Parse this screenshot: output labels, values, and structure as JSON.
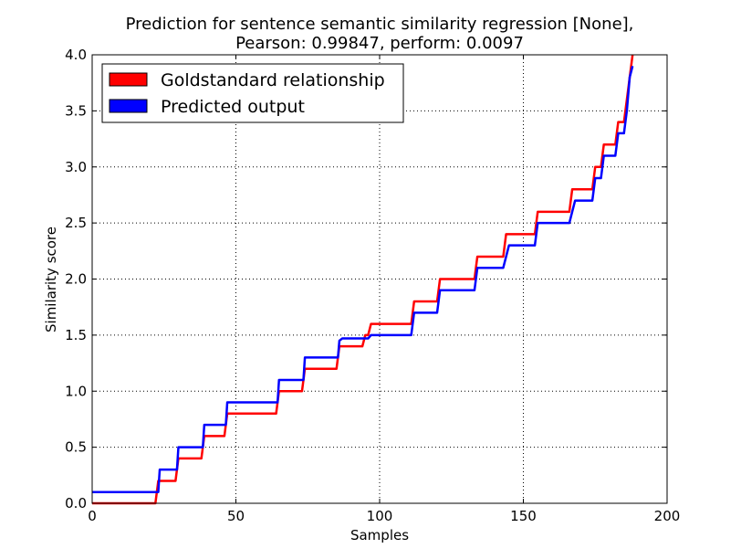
{
  "chart_data": {
    "type": "line",
    "title_lines": [
      "Prediction for sentence semantic similarity regression [None],",
      "Pearson: 0.99847, perform: 0.0097"
    ],
    "xlabel": "Samples",
    "ylabel": "Similarity score",
    "xlim": [
      0,
      200
    ],
    "ylim": [
      0.0,
      4.0
    ],
    "xticks": [
      0,
      50,
      100,
      150,
      200
    ],
    "xtick_labels": [
      "0",
      "50",
      "100",
      "150",
      "200"
    ],
    "yticks": [
      0.0,
      0.5,
      1.0,
      1.5,
      2.0,
      2.5,
      3.0,
      3.5,
      4.0
    ],
    "ytick_labels": [
      "0.0",
      "0.5",
      "1.0",
      "1.5",
      "2.0",
      "2.5",
      "3.0",
      "3.5",
      "4.0"
    ],
    "grid": true,
    "legend_position": "top-left",
    "series": [
      {
        "name": "Goldstandard relationship",
        "color": "#ff0000",
        "points": [
          [
            0,
            0.0
          ],
          [
            22,
            0.0
          ],
          [
            23,
            0.2
          ],
          [
            29,
            0.2
          ],
          [
            30,
            0.4
          ],
          [
            38,
            0.4
          ],
          [
            39,
            0.6
          ],
          [
            46,
            0.6
          ],
          [
            47,
            0.8
          ],
          [
            64,
            0.8
          ],
          [
            65,
            1.0
          ],
          [
            73,
            1.0
          ],
          [
            74,
            1.2
          ],
          [
            85,
            1.2
          ],
          [
            86,
            1.4
          ],
          [
            94,
            1.4
          ],
          [
            95,
            1.5
          ],
          [
            96,
            1.5
          ],
          [
            97,
            1.6
          ],
          [
            111,
            1.6
          ],
          [
            112,
            1.8
          ],
          [
            120,
            1.8
          ],
          [
            121,
            2.0
          ],
          [
            133,
            2.0
          ],
          [
            134,
            2.2
          ],
          [
            143,
            2.2
          ],
          [
            144,
            2.4
          ],
          [
            154,
            2.4
          ],
          [
            155,
            2.6
          ],
          [
            166,
            2.6
          ],
          [
            167,
            2.8
          ],
          [
            174,
            2.8
          ],
          [
            175,
            3.0
          ],
          [
            177,
            3.0
          ],
          [
            178,
            3.2
          ],
          [
            182,
            3.2
          ],
          [
            183,
            3.4
          ],
          [
            185,
            3.4
          ],
          [
            186,
            3.6
          ],
          [
            187,
            3.8
          ],
          [
            188,
            4.0
          ]
        ]
      },
      {
        "name": "Predicted output",
        "color": "#0000ff",
        "points": [
          [
            0,
            0.1
          ],
          [
            23,
            0.1
          ],
          [
            23.5,
            0.3
          ],
          [
            29.5,
            0.3
          ],
          [
            30,
            0.5
          ],
          [
            38.5,
            0.5
          ],
          [
            39,
            0.7
          ],
          [
            46.5,
            0.7
          ],
          [
            47,
            0.9
          ],
          [
            64.5,
            0.9
          ],
          [
            65,
            1.1
          ],
          [
            73.5,
            1.1
          ],
          [
            74,
            1.3
          ],
          [
            85.5,
            1.3
          ],
          [
            86,
            1.45
          ],
          [
            87,
            1.47
          ],
          [
            96,
            1.47
          ],
          [
            97,
            1.5
          ],
          [
            111,
            1.5
          ],
          [
            112,
            1.7
          ],
          [
            120,
            1.7
          ],
          [
            121,
            1.9
          ],
          [
            133,
            1.9
          ],
          [
            134,
            2.1
          ],
          [
            143,
            2.1
          ],
          [
            144,
            2.2
          ],
          [
            145,
            2.3
          ],
          [
            154,
            2.3
          ],
          [
            155,
            2.5
          ],
          [
            166,
            2.5
          ],
          [
            167,
            2.6
          ],
          [
            168,
            2.7
          ],
          [
            174,
            2.7
          ],
          [
            175,
            2.9
          ],
          [
            176,
            2.9
          ],
          [
            177,
            2.9
          ],
          [
            178,
            3.1
          ],
          [
            182,
            3.1
          ],
          [
            183,
            3.3
          ],
          [
            185,
            3.3
          ],
          [
            186,
            3.5
          ],
          [
            187,
            3.8
          ],
          [
            188,
            3.9
          ]
        ]
      }
    ]
  }
}
